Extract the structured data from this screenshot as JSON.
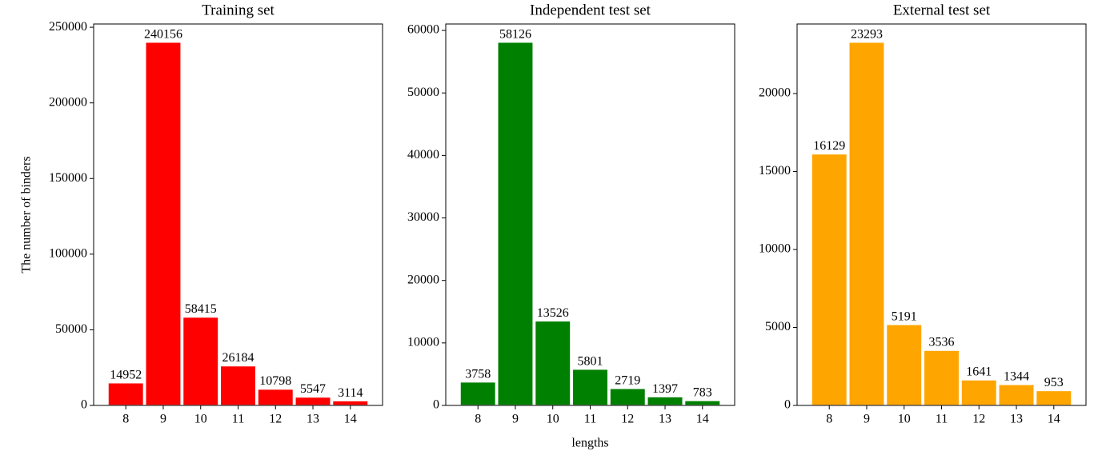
{
  "chart_data": [
    {
      "type": "bar",
      "title": "Training set",
      "ylabel": "The number of binders",
      "categories": [
        "8",
        "9",
        "10",
        "11",
        "12",
        "13",
        "14"
      ],
      "values": [
        14952,
        240156,
        58415,
        26184,
        10798,
        5547,
        3114
      ],
      "color": "#ff0000",
      "ylim": [
        0,
        252164
      ],
      "yticks": [
        0,
        50000,
        100000,
        150000,
        200000,
        250000
      ]
    },
    {
      "type": "bar",
      "title": "Independent test set",
      "xlabel": "lengths",
      "categories": [
        "8",
        "9",
        "10",
        "11",
        "12",
        "13",
        "14"
      ],
      "values": [
        3758,
        58126,
        13526,
        5801,
        2719,
        1397,
        783
      ],
      "color": "#008000",
      "ylim": [
        0,
        61032
      ],
      "yticks": [
        0,
        10000,
        20000,
        30000,
        40000,
        50000,
        60000
      ]
    },
    {
      "type": "bar",
      "title": "External test set",
      "categories": [
        "8",
        "9",
        "10",
        "11",
        "12",
        "13",
        "14"
      ],
      "values": [
        16129,
        23293,
        5191,
        3536,
        1641,
        1344,
        953
      ],
      "color": "#ffa500",
      "ylim": [
        0,
        24458
      ],
      "yticks": [
        0,
        5000,
        10000,
        15000,
        20000
      ]
    }
  ]
}
